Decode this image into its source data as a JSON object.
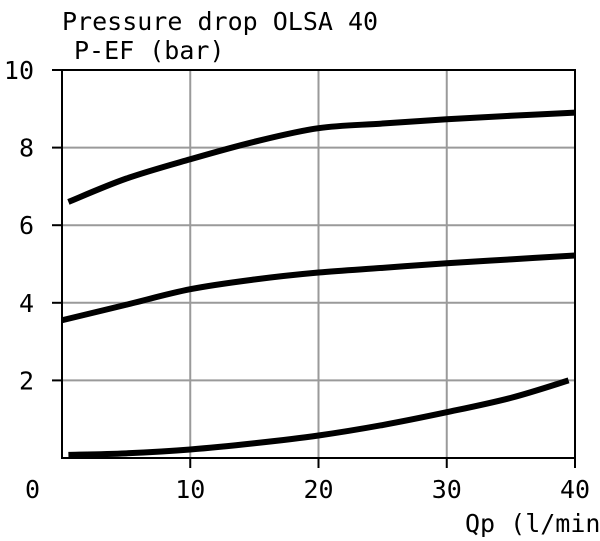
{
  "chart_data": {
    "type": "line",
    "title": "Pressure drop OLSA 40",
    "subtitle": "",
    "ylabel": "P-EF (bar)",
    "xlabel": "Qp (l/min)",
    "origin_label": "0",
    "xlim": [
      0,
      40
    ],
    "ylim": [
      0,
      10
    ],
    "x_ticks": [
      10,
      20,
      30,
      40
    ],
    "x_tick_labels": [
      "10",
      "20",
      "30",
      "40"
    ],
    "y_ticks": [
      2,
      4,
      6,
      8,
      10
    ],
    "y_tick_labels": [
      "2",
      "4",
      "6",
      "8",
      "10"
    ],
    "grid": true,
    "legend": "none",
    "colors": {
      "line": "#000000",
      "grid": "#9a9a9a",
      "frame": "#000000"
    },
    "series": [
      {
        "x": [
          0.5,
          5,
          10,
          15,
          20,
          25,
          30,
          35,
          40
        ],
        "y": [
          6.6,
          7.2,
          7.7,
          8.15,
          8.5,
          8.62,
          8.73,
          8.82,
          8.9
        ]
      },
      {
        "x": [
          0,
          5,
          10,
          15,
          20,
          25,
          30,
          35,
          40
        ],
        "y": [
          3.55,
          3.95,
          4.35,
          4.6,
          4.78,
          4.9,
          5.02,
          5.12,
          5.22
        ]
      },
      {
        "x": [
          0.5,
          5,
          10,
          15,
          20,
          25,
          30,
          35,
          39.5
        ],
        "y": [
          0.08,
          0.12,
          0.22,
          0.38,
          0.58,
          0.85,
          1.18,
          1.55,
          2.0
        ]
      }
    ]
  }
}
